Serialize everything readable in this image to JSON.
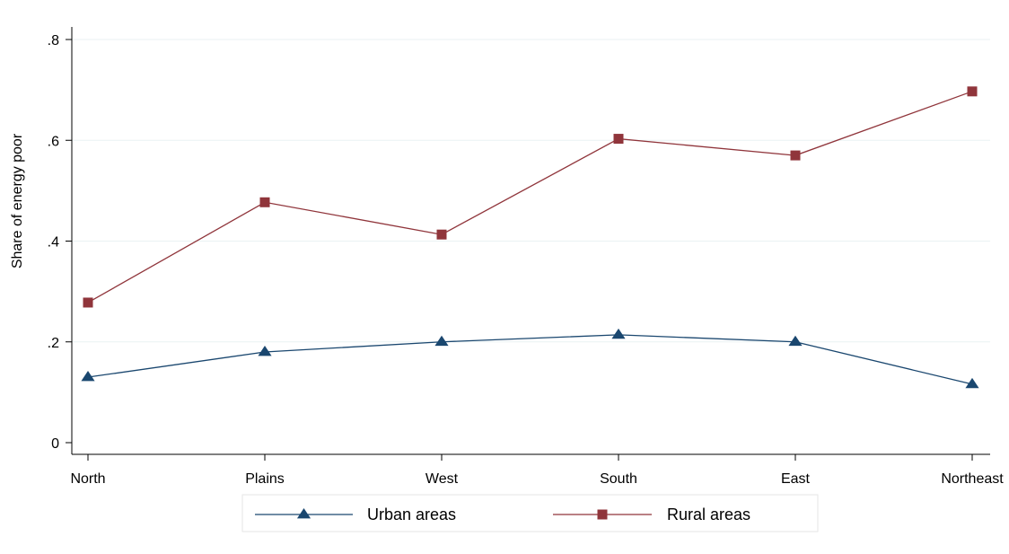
{
  "chart_data": {
    "type": "line",
    "categories": [
      "North",
      "Plains",
      "West",
      "South",
      "East",
      "Northeast"
    ],
    "series": [
      {
        "name": "Urban areas",
        "values": [
          0.13,
          0.18,
          0.2,
          0.214,
          0.2,
          0.116
        ],
        "color": "#1a476f",
        "marker": "triangle"
      },
      {
        "name": "Rural areas",
        "values": [
          0.278,
          0.477,
          0.413,
          0.603,
          0.57,
          0.697
        ],
        "color": "#90353b",
        "marker": "square"
      }
    ],
    "ylabel": "Share of energy poor",
    "xlabel": "",
    "ylim": [
      0,
      0.8
    ],
    "yticks": [
      0,
      0.2,
      0.4,
      0.6,
      0.8
    ],
    "ytick_labels": [
      "0",
      ".2",
      ".4",
      ".6",
      ".8"
    ],
    "grid": true,
    "legend_position": "bottom"
  }
}
